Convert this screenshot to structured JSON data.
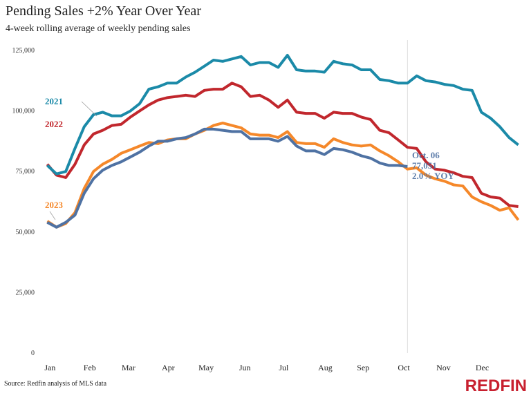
{
  "chart_data": {
    "type": "line",
    "title": "Pending Sales +2% Year Over Year",
    "subtitle": "4-week rolling average of weekly pending sales",
    "source": "Source: Redfin analysis of MLS data",
    "brand": "REDFIN",
    "x": [
      1,
      2,
      3,
      4,
      5,
      6,
      7,
      8,
      9,
      10,
      11,
      12,
      13,
      14,
      15,
      16,
      17,
      18,
      19,
      20,
      21,
      22,
      23,
      24,
      25,
      26,
      27,
      28,
      29,
      30,
      31,
      32,
      33,
      34,
      35,
      36,
      37,
      38,
      39,
      40,
      41,
      42,
      43,
      44,
      45,
      46,
      47,
      48,
      49,
      50,
      51,
      52
    ],
    "xlim": [
      0,
      53
    ],
    "xticks": [
      {
        "value": 1.3,
        "label": "Jan"
      },
      {
        "value": 5.6,
        "label": "Feb"
      },
      {
        "value": 9.8,
        "label": "Mar"
      },
      {
        "value": 14.1,
        "label": "Apr"
      },
      {
        "value": 18.2,
        "label": "May"
      },
      {
        "value": 22.4,
        "label": "Jun"
      },
      {
        "value": 26.6,
        "label": "Jul"
      },
      {
        "value": 31.1,
        "label": "Aug"
      },
      {
        "value": 35.2,
        "label": "Sep"
      },
      {
        "value": 39.6,
        "label": "Oct"
      },
      {
        "value": 43.9,
        "label": "Nov"
      },
      {
        "value": 48.1,
        "label": "Dec"
      }
    ],
    "ylim": [
      0,
      125000
    ],
    "yticks": [
      0,
      {
        "value": 25000,
        "label": "25,000"
      },
      {
        "value": 50000,
        "label": "50,000"
      },
      {
        "value": 75000,
        "label": "75,000"
      },
      {
        "value": 100000,
        "label": "100,000"
      },
      {
        "value": 125000,
        "label": "125,000"
      }
    ],
    "grid": false,
    "vline_x": 40,
    "series": [
      {
        "name": "2021",
        "color": "#1b8aa8",
        "values": [
          77500,
          74000,
          75000,
          84500,
          93500,
          98500,
          99500,
          98000,
          98000,
          100000,
          103000,
          109000,
          110000,
          111500,
          111500,
          114000,
          116000,
          118500,
          121000,
          120500,
          121500,
          122500,
          119000,
          120000,
          120000,
          118000,
          123000,
          117000,
          116500,
          116500,
          116000,
          120500,
          119500,
          119000,
          117000,
          117000,
          113000,
          112500,
          111500,
          111500,
          114500,
          112500,
          112000,
          111000,
          110500,
          109000,
          108500,
          99500,
          97000,
          93500,
          89000,
          86000
        ]
      },
      {
        "name": "2022",
        "color": "#c1272d",
        "values": [
          78000,
          73500,
          72500,
          78000,
          86000,
          90500,
          92000,
          94000,
          94500,
          97500,
          100000,
          102500,
          104500,
          105500,
          106000,
          106500,
          106000,
          108500,
          109000,
          109000,
          111500,
          110000,
          106000,
          106500,
          104500,
          101500,
          104500,
          99500,
          99000,
          99000,
          97000,
          99500,
          99000,
          99000,
          97500,
          96500,
          92000,
          91000,
          88000,
          85000,
          84500,
          79000,
          76000,
          75500,
          74500,
          73000,
          72500,
          66000,
          64500,
          64000,
          61000,
          60500
        ]
      },
      {
        "name": "2023",
        "color": "#f5882a",
        "values": [
          54500,
          52000,
          53500,
          58000,
          68000,
          75000,
          78000,
          80000,
          82500,
          84000,
          85500,
          87000,
          86500,
          88000,
          88500,
          88500,
          90500,
          92000,
          94000,
          95000,
          94000,
          93000,
          90500,
          90000,
          90000,
          89000,
          91500,
          87000,
          86500,
          86500,
          85000,
          88500,
          87000,
          86000,
          85500,
          86000,
          83500,
          81500,
          79000,
          76000,
          76500,
          73500,
          72000,
          71000,
          69500,
          69000,
          64500,
          62500,
          61000,
          59000,
          60000,
          55000
        ]
      },
      {
        "color": "#4f72a3",
        "values": [
          54000,
          52000,
          54000,
          57000,
          66000,
          72000,
          75500,
          77500,
          79000,
          81000,
          83000,
          85500,
          87500,
          87500,
          88500,
          89000,
          90500,
          92500,
          92500,
          92000,
          91500,
          91500,
          88500,
          88500,
          88500,
          87500,
          89500,
          85500,
          83500,
          83500,
          82000,
          84500,
          84000,
          83000,
          81500,
          80500,
          78500,
          77500,
          77500,
          77051,
          null,
          null,
          null,
          null,
          null,
          null,
          null,
          null,
          null,
          null,
          null,
          null
        ]
      }
    ],
    "annotations": [
      "Oct. 06",
      "77,051",
      "2.0% YOY"
    ]
  }
}
